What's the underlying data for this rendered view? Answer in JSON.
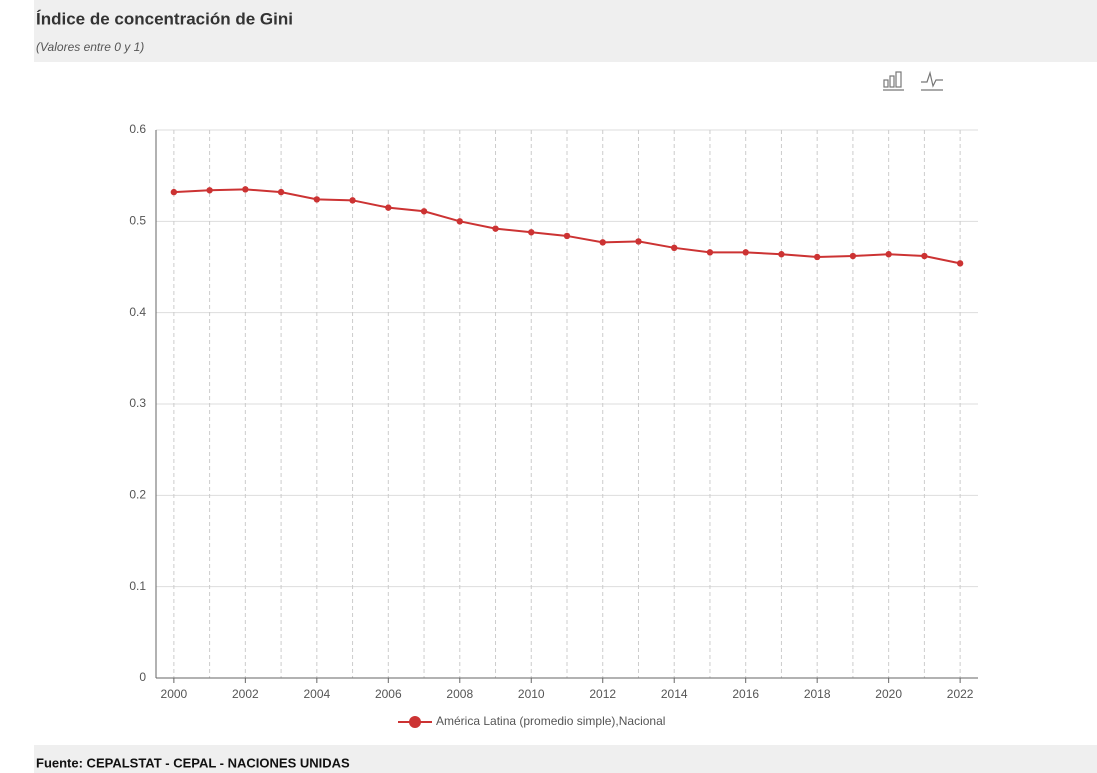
{
  "chart_data": {
    "type": "line",
    "title": "Índice de concentración de Gini",
    "subtitle": "(Valores entre 0 y 1)",
    "source": "Fuente: CEPALSTAT - CEPAL - NACIONES UNIDAS",
    "x": [
      2000,
      2001,
      2002,
      2003,
      2004,
      2005,
      2006,
      2007,
      2008,
      2009,
      2010,
      2011,
      2012,
      2013,
      2014,
      2015,
      2016,
      2017,
      2018,
      2019,
      2020,
      2021,
      2022
    ],
    "xlim": [
      1999.5,
      2022.5
    ],
    "xticks": [
      2000,
      2002,
      2004,
      2006,
      2008,
      2010,
      2012,
      2014,
      2016,
      2018,
      2020,
      2022
    ],
    "ylim": [
      0,
      0.6
    ],
    "yticks": [
      0,
      0.1,
      0.2,
      0.3,
      0.4,
      0.5,
      0.6
    ],
    "grid": true,
    "legend": "bottom",
    "series": [
      {
        "name": "América Latina (promedio simple),Nacional",
        "color": "#cc3333",
        "values": [
          0.532,
          0.534,
          0.535,
          0.532,
          0.524,
          0.523,
          0.515,
          0.511,
          0.5,
          0.492,
          0.488,
          0.484,
          0.477,
          0.478,
          0.471,
          0.466,
          0.466,
          0.464,
          0.461,
          0.462,
          0.464,
          0.462,
          0.454
        ]
      }
    ]
  }
}
